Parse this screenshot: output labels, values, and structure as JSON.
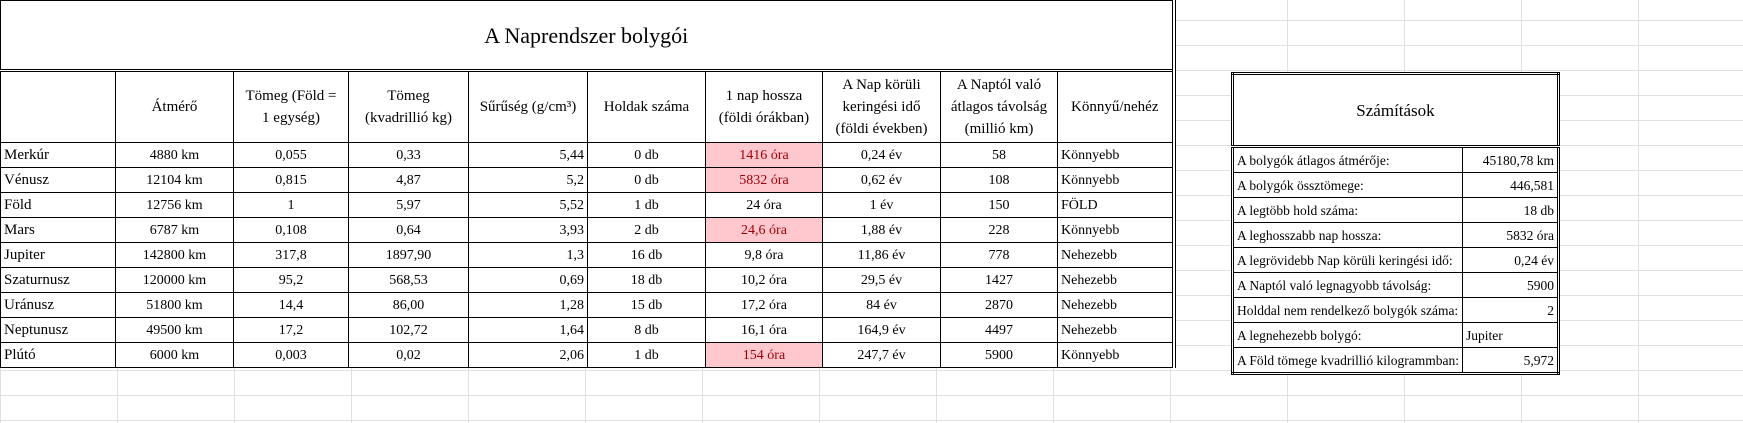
{
  "title": "A Naprendszer bolygói",
  "headers": [
    "",
    "Átmérő",
    "Tömeg (Föld =\n1 egység)",
    "Tömeg\n(kvadrillió kg)",
    "Sűrűség (g/cm³)",
    "Holdak száma",
    "1 nap hossza\n(földi órákban)",
    "A Nap körüli\nkeringési idő\n(földi években)",
    "A Naptól való\nátlagos távolság\n(millió km)",
    "Könnyű/nehéz"
  ],
  "rows": [
    [
      "Merkúr",
      "4880 km",
      "0,055",
      "0,33",
      "5,44",
      "0 db",
      "1416 óra",
      "0,24 év",
      "58",
      "Könnyebb"
    ],
    [
      "Vénusz",
      "12104 km",
      "0,815",
      "4,87",
      "5,2",
      "0 db",
      "5832 óra",
      "0,62 év",
      "108",
      "Könnyebb"
    ],
    [
      "Föld",
      "12756 km",
      "1",
      "5,97",
      "5,52",
      "1 db",
      "24 óra",
      "1 év",
      "150",
      "FÖLD"
    ],
    [
      "Mars",
      "6787 km",
      "0,108",
      "0,64",
      "3,93",
      "2 db",
      "24,6 óra",
      "1,88 év",
      "228",
      "Könnyebb"
    ],
    [
      "Jupiter",
      "142800 km",
      "317,8",
      "1897,90",
      "1,3",
      "16 db",
      "9,8 óra",
      "11,86 év",
      "778",
      "Nehezebb"
    ],
    [
      "Szaturnusz",
      "120000 km",
      "95,2",
      "568,53",
      "0,69",
      "18 db",
      "10,2 óra",
      "29,5 év",
      "1427",
      "Nehezebb"
    ],
    [
      "Uránusz",
      "51800 km",
      "14,4",
      "86,00",
      "1,28",
      "15 db",
      "17,2 óra",
      "84 év",
      "2870",
      "Nehezebb"
    ],
    [
      "Neptunusz",
      "49500 km",
      "17,2",
      "102,72",
      "1,64",
      "8 db",
      "16,1 óra",
      "164,9 év",
      "4497",
      "Nehezebb"
    ],
    [
      "Plútó",
      "6000 km",
      "0,003",
      "0,02",
      "2,06",
      "1 db",
      "154 óra",
      "247,7 év",
      "5900",
      "Könnyebb"
    ]
  ],
  "highlighted_day_rows": [
    0,
    1,
    3,
    8
  ],
  "highlight_colors": {
    "fill": "#ffc7ce",
    "text": "#9c0006"
  },
  "calc": {
    "title": "Számítások",
    "items": [
      [
        "A bolygók átlagos átmérője:",
        "45180,78 km"
      ],
      [
        "A bolygók össztömege:",
        "446,581"
      ],
      [
        "A legtöbb hold száma:",
        "18 db"
      ],
      [
        "A leghosszabb nap hossza:",
        "5832 óra"
      ],
      [
        "A legrövidebb Nap körüli keringési idő:",
        "0,24 év"
      ],
      [
        "A Naptól való legnagyobb távolság:",
        "5900"
      ],
      [
        "Holddal nem rendelkező bolygók száma:",
        "2"
      ],
      [
        "A legnehezebb bolygó:",
        "Jupiter"
      ],
      [
        "A Föld tömege kvadrillió kilogrammban:",
        "5,972"
      ]
    ]
  }
}
